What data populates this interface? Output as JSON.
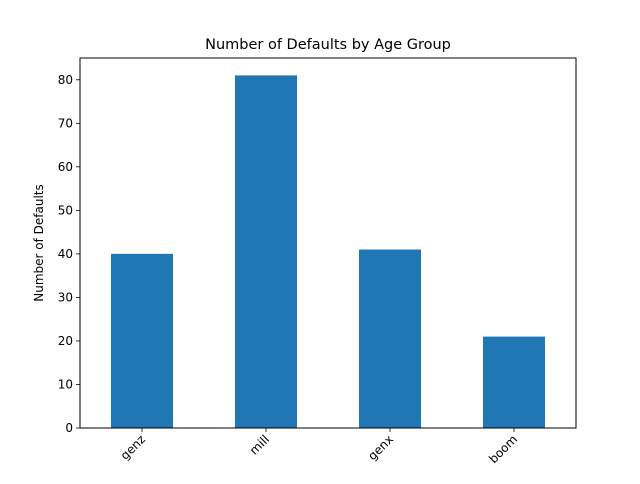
{
  "chart_data": {
    "type": "bar",
    "title": "Number of Defaults by Age Group",
    "xlabel": "",
    "ylabel": "Number of Defaults",
    "categories": [
      "genz",
      "mill",
      "genx",
      "boom"
    ],
    "values": [
      40,
      81,
      41,
      21
    ],
    "ylim": [
      0,
      85
    ],
    "yticks": [
      0,
      10,
      20,
      30,
      40,
      50,
      60,
      70,
      80
    ],
    "bar_color": "#1f77b4",
    "grid": false,
    "legend": "none",
    "xtick_rotation": "45 degrees"
  }
}
